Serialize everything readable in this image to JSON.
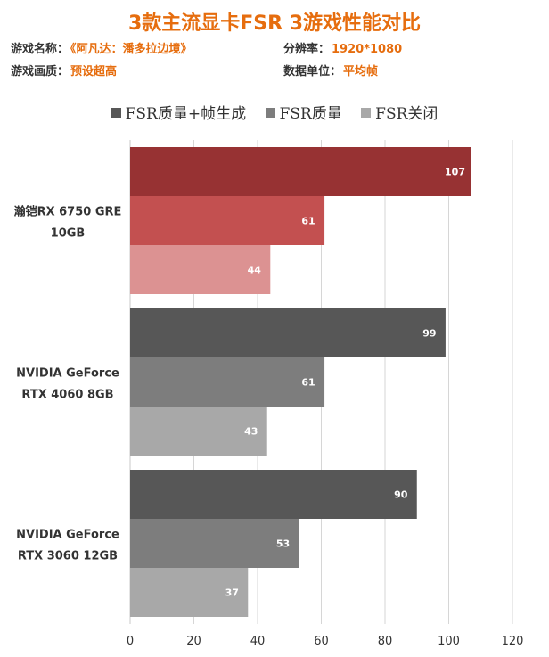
{
  "header": {
    "title": "3款主流显卡FSR 3游戏性能对比",
    "title_color": "#e66d0e",
    "game_key": "游戏名称：",
    "game_value": "《阿凡达：潘多拉边境》",
    "quality_key": "游戏画质：",
    "quality_value": "预设超高",
    "resolution_key": "分辨率：",
    "resolution_value": "1920*1080",
    "unit_key": "数据单位：",
    "unit_value": "平均帧",
    "value_color": "#e66d0e"
  },
  "chart_data": {
    "type": "bar",
    "orientation": "horizontal",
    "categories": [
      [
        "瀚铠RX 6750 GRE",
        "10GB"
      ],
      [
        "NVIDIA GeForce",
        "RTX 4060 8GB"
      ],
      [
        "NVIDIA GeForce",
        "RTX 3060 12GB"
      ]
    ],
    "series": [
      {
        "name": "FSR质量+帧生成",
        "values": [
          107,
          99,
          90
        ]
      },
      {
        "name": "FSR质量",
        "values": [
          61,
          61,
          53
        ]
      },
      {
        "name": "FSR关闭",
        "values": [
          44,
          43,
          37
        ]
      }
    ],
    "colors": [
      [
        "#973233",
        "#c35050",
        "#dc9292"
      ],
      [
        "#575757",
        "#7d7d7d",
        "#a8a8a8"
      ],
      [
        "#575757",
        "#7d7d7d",
        "#a8a8a8"
      ]
    ],
    "legend_colors": [
      "#575757",
      "#7d7d7d",
      "#a8a8a8"
    ],
    "xlim": [
      0,
      120
    ],
    "xticks": [
      0,
      20,
      40,
      60,
      80,
      100,
      120
    ],
    "grid": true,
    "legend_position": "top"
  }
}
